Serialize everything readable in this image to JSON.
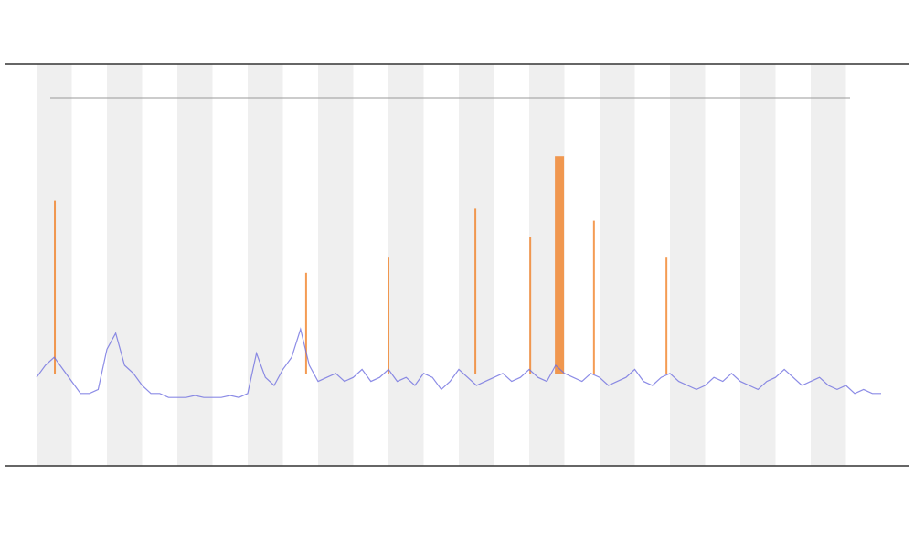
{
  "chart_data": {
    "type": "line",
    "xlim": [
      0,
      24
    ],
    "ylim": [
      0,
      100
    ],
    "series": [
      {
        "type": "line",
        "color": "#6f6fe0",
        "x": [
          0,
          0.25,
          0.5,
          0.75,
          1,
          1.25,
          1.5,
          1.75,
          2,
          2.25,
          2.5,
          2.75,
          3,
          3.25,
          3.5,
          3.75,
          4,
          4.25,
          4.5,
          4.75,
          5,
          5.25,
          5.5,
          5.75,
          6,
          6.25,
          6.5,
          6.75,
          7,
          7.25,
          7.5,
          7.75,
          8,
          8.25,
          8.5,
          8.75,
          9,
          9.25,
          9.5,
          9.75,
          10,
          10.25,
          10.5,
          10.75,
          11,
          11.25,
          11.5,
          11.75,
          12,
          12.25,
          12.5,
          12.75,
          13,
          13.25,
          13.5,
          13.75,
          14,
          14.25,
          14.5,
          14.75,
          15,
          15.25,
          15.5,
          15.75,
          16,
          16.25,
          16.5,
          16.75,
          17,
          17.25,
          17.5,
          17.75,
          18,
          18.25,
          18.5,
          18.75,
          19,
          19.25,
          19.5,
          19.75,
          20,
          20.25,
          20.5,
          20.75,
          21,
          21.25,
          21.5,
          21.75,
          22,
          22.25,
          22.5,
          22.75,
          23,
          23.25,
          23.5,
          23.75,
          24
        ],
        "values": [
          22,
          25,
          27,
          24,
          21,
          18,
          18,
          19,
          29,
          33,
          25,
          23,
          20,
          18,
          18,
          17,
          17,
          17,
          17.5,
          17,
          17,
          17,
          17.5,
          17,
          18,
          28,
          22,
          20,
          24,
          27,
          34,
          25,
          21,
          22,
          23,
          21,
          22,
          24,
          21,
          22,
          24,
          21,
          22,
          20,
          23,
          22,
          19,
          21,
          24,
          22,
          20,
          21,
          22,
          23,
          21,
          22,
          24,
          22,
          21,
          25,
          23,
          22,
          21,
          23,
          22,
          20,
          21,
          22,
          24,
          21,
          20,
          22,
          23,
          21,
          20,
          19,
          20,
          22,
          21,
          23,
          21,
          20,
          19,
          21,
          22,
          24,
          22,
          20,
          21,
          22,
          20,
          19,
          20,
          18,
          19,
          18,
          18
        ]
      },
      {
        "type": "spike",
        "color": "#f07a1a",
        "x": [
          0.52,
          7.66,
          10,
          12.47,
          14.03,
          14.86,
          15.84,
          17.9
        ],
        "values": [
          66,
          48,
          52,
          64,
          57,
          77,
          61,
          52
        ]
      }
    ]
  }
}
